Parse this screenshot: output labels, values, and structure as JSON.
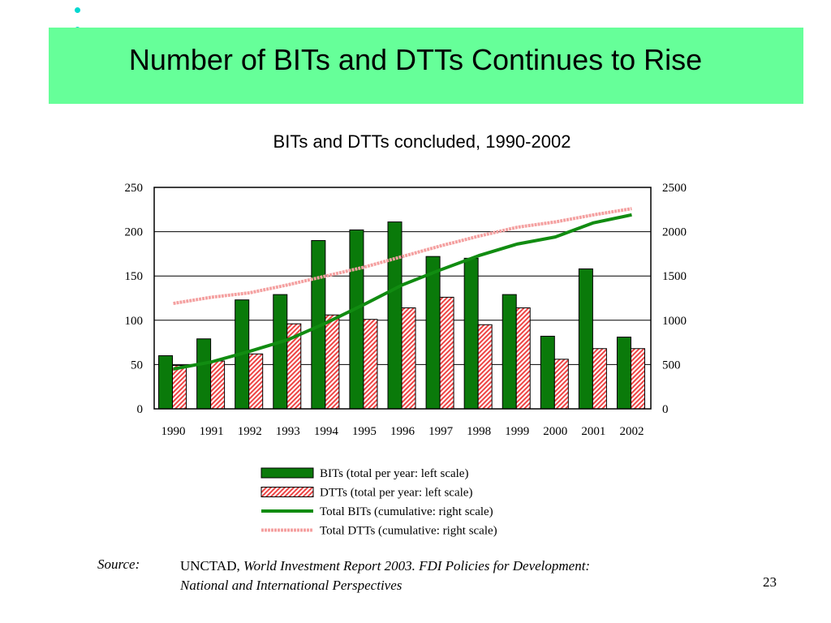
{
  "slide": {
    "title": "Number of BITs and DTTs Continues to Rise",
    "page_number": "23",
    "banner_color": "#66ff99",
    "bullet_color": "#00d8d0"
  },
  "source": {
    "label": "Source:",
    "publisher": "UNCTAD",
    "separator": ", ",
    "title_line1": "World Investment Report 2003.  FDI Policies for Development:",
    "title_line2": "National and International Perspectives"
  },
  "chart_data": {
    "type": "bar",
    "title": "BITs and DTTs concluded, 1990-2002",
    "categories": [
      "1990",
      "1991",
      "1992",
      "1993",
      "1994",
      "1995",
      "1996",
      "1997",
      "1998",
      "1999",
      "2000",
      "2001",
      "2002"
    ],
    "y_left": {
      "range": [
        0,
        250
      ],
      "ticks": [
        "0",
        "50",
        "100",
        "150",
        "200",
        "250"
      ]
    },
    "y_right": {
      "range": [
        0,
        2500
      ],
      "ticks": [
        "0",
        "500",
        "1000",
        "1500",
        "2000",
        "2500"
      ]
    },
    "grid": true,
    "legend_position": "bottom",
    "series": [
      {
        "name": "BITs (total per year: left scale)",
        "kind": "bar",
        "axis": "left",
        "color": "#0a7a0a",
        "values": [
          60,
          79,
          123,
          129,
          190,
          202,
          211,
          172,
          170,
          129,
          82,
          158,
          81
        ]
      },
      {
        "name": "DTTs (total per year: left scale)",
        "kind": "bar",
        "axis": "left",
        "color": "#ee4444",
        "pattern": "hatched",
        "values": [
          49,
          54,
          62,
          96,
          106,
          101,
          114,
          126,
          95,
          114,
          56,
          68,
          68
        ]
      },
      {
        "name": "Total BITs (cumulative: right scale)",
        "kind": "line",
        "axis": "right",
        "color": "#118c11",
        "values": [
          450,
          530,
          650,
          780,
          970,
          1180,
          1400,
          1570,
          1730,
          1860,
          1940,
          2100,
          2190
        ]
      },
      {
        "name": "Total DTTs (cumulative: right scale)",
        "kind": "line",
        "axis": "right",
        "color": "#f4a0a0",
        "pattern": "dotted",
        "values": [
          1190,
          1260,
          1310,
          1400,
          1500,
          1600,
          1720,
          1840,
          1950,
          2050,
          2110,
          2190,
          2260
        ]
      }
    ]
  }
}
